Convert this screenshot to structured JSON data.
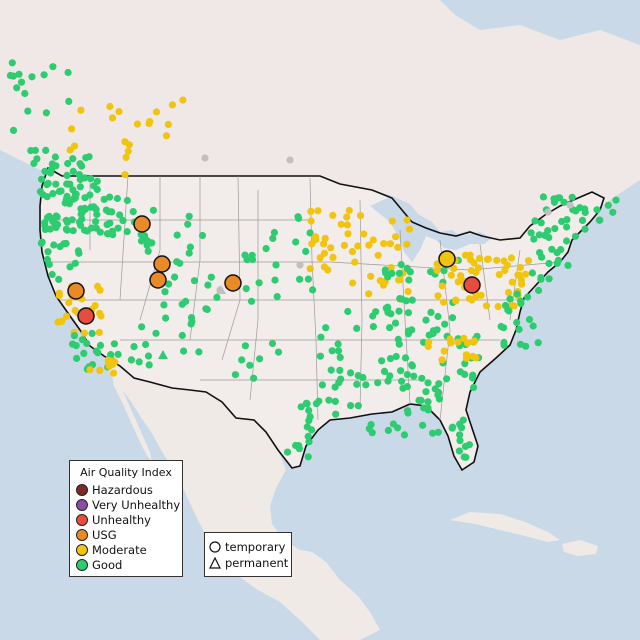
{
  "legend": {
    "title": "Air Quality Index",
    "items": [
      {
        "label": "Hazardous",
        "color": "#7e2a24"
      },
      {
        "label": "Very Unhealthy",
        "color": "#8e4ba3"
      },
      {
        "label": "Unhealthy",
        "color": "#e74c3c"
      },
      {
        "label": "USG",
        "color": "#ea8a26"
      },
      {
        "label": "Moderate",
        "color": "#f1c40f"
      },
      {
        "label": "Good",
        "color": "#2ecc71"
      }
    ]
  },
  "type_legend": {
    "items": [
      {
        "label": "temporary",
        "shape": "circle"
      },
      {
        "label": "permanent",
        "shape": "triangle"
      }
    ]
  },
  "map": {
    "region": "Contiguous United States",
    "land_color": "#f2ecea",
    "water_color": "#c9d9e8",
    "border_color": "#111111",
    "state_line_color": "#9a9a9a",
    "nodata_color": "#c0c0c0"
  }
}
